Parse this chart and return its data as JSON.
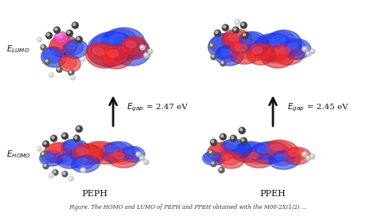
{
  "background_color": "#ffffff",
  "text_color": "#111111",
  "arrow_color": "#111111",
  "red_orbital": "#cc2020",
  "blue_orbital": "#1a2ecc",
  "atom_dark": "#404040",
  "atom_light": "#b0b0b0",
  "atom_white": "#e8e8e8",
  "label_lumo": "E",
  "label_lumo_sub": "LUMO",
  "label_homo": "E",
  "label_homo_sub": "HOMO",
  "label_peph": "PEPH",
  "label_ppeh": "PPEH",
  "left_energy": "E",
  "left_energy_sub": "gap",
  "left_energy_val": "= 2.47 eV",
  "right_energy": "E",
  "right_energy_sub": "gap",
  "right_energy_val": "= 2.45 eV",
  "caption": "Figure. The HOMO and LUMO of PEPH and PPEH obtained with the M06-2X(1/2) ...",
  "figsize": [
    4.74,
    2.73
  ],
  "dpi": 100
}
